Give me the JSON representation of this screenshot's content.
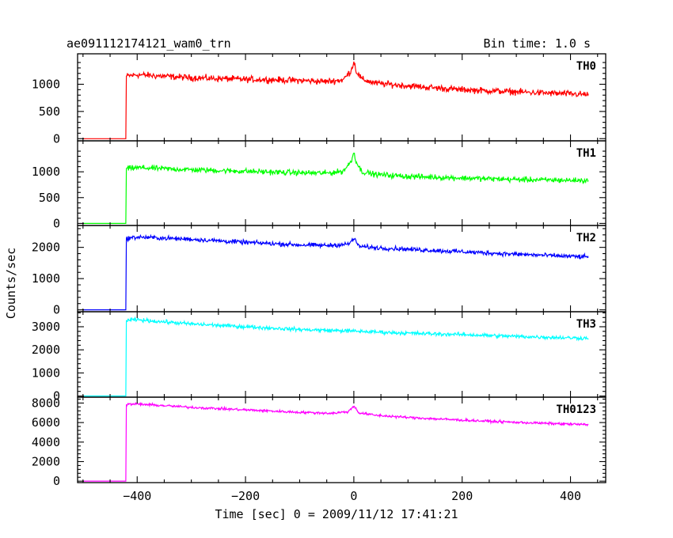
{
  "header": {
    "title": "ae091112174121_wam0_trn",
    "bin_time": "Bin time: 1.0 s"
  },
  "chart_data": {
    "type": "line",
    "title": "ae091112174121_wam0_trn",
    "subtitle": "Bin time: 1.0 s",
    "xlabel": "Time [sec] 0 = 2009/11/12 17:41:21",
    "ylabel": "Counts/sec",
    "xlim": [
      -510,
      465
    ],
    "x_ticks": [
      -400,
      -200,
      0,
      200,
      400
    ],
    "x_tick_labels": [
      "−400",
      "−200",
      "0",
      "200",
      "400"
    ],
    "grid": false,
    "step_time": -420,
    "x_end": 433,
    "panels": [
      {
        "name": "TH0",
        "color": "#ff0000",
        "ylim": [
          -40,
          1560
        ],
        "yticks": [
          0,
          500,
          1000
        ],
        "x": [
          -500,
          -421,
          -420,
          -400,
          -300,
          -200,
          -160,
          -100,
          -50,
          -20,
          -5,
          0,
          5,
          15,
          40,
          100,
          200,
          300,
          433
        ],
        "y": [
          0,
          0,
          1150,
          1175,
          1120,
          1090,
          1085,
          1070,
          1050,
          1080,
          1250,
          1420,
          1230,
          1090,
          1020,
          970,
          900,
          860,
          810
        ],
        "noise": 50
      },
      {
        "name": "TH1",
        "color": "#00ff00",
        "ylim": [
          -40,
          1600
        ],
        "yticks": [
          0,
          500,
          1000
        ],
        "x": [
          -500,
          -421,
          -420,
          -400,
          -300,
          -200,
          -100,
          -50,
          -20,
          -5,
          0,
          5,
          15,
          40,
          100,
          200,
          300,
          433
        ],
        "y": [
          0,
          0,
          1060,
          1080,
          1040,
          1010,
          980,
          975,
          1010,
          1200,
          1380,
          1180,
          1000,
          950,
          910,
          880,
          850,
          830
        ],
        "noise": 45
      },
      {
        "name": "TH2",
        "color": "#0000ff",
        "ylim": [
          -60,
          2700
        ],
        "yticks": [
          0,
          1000,
          2000
        ],
        "x": [
          -500,
          -421,
          -420,
          -400,
          -300,
          -200,
          -100,
          -50,
          -10,
          0,
          10,
          40,
          100,
          200,
          300,
          433
        ],
        "y": [
          0,
          0,
          2280,
          2330,
          2260,
          2160,
          2080,
          2060,
          2100,
          2280,
          2030,
          1990,
          1940,
          1860,
          1780,
          1690
        ],
        "noise": 60
      },
      {
        "name": "TH3",
        "color": "#00ffff",
        "ylim": [
          -50,
          3650
        ],
        "yticks": [
          0,
          1000,
          2000,
          3000
        ],
        "x": [
          -500,
          -421,
          -420,
          -400,
          -300,
          -200,
          -100,
          0,
          100,
          200,
          300,
          433
        ],
        "y": [
          0,
          0,
          3280,
          3300,
          3120,
          3000,
          2880,
          2810,
          2720,
          2660,
          2580,
          2500
        ],
        "noise": 70
      },
      {
        "name": "TH0123",
        "color": "#ff00ff",
        "ylim": [
          -150,
          8600
        ],
        "yticks": [
          0,
          2000,
          4000,
          6000,
          8000
        ],
        "x": [
          -500,
          -421,
          -420,
          -400,
          -300,
          -200,
          -100,
          -40,
          -10,
          0,
          10,
          40,
          100,
          200,
          300,
          433
        ],
        "y": [
          0,
          0,
          7850,
          7900,
          7560,
          7300,
          7050,
          6950,
          7120,
          7700,
          6980,
          6750,
          6520,
          6250,
          6020,
          5780
        ],
        "noise": 110
      }
    ]
  }
}
